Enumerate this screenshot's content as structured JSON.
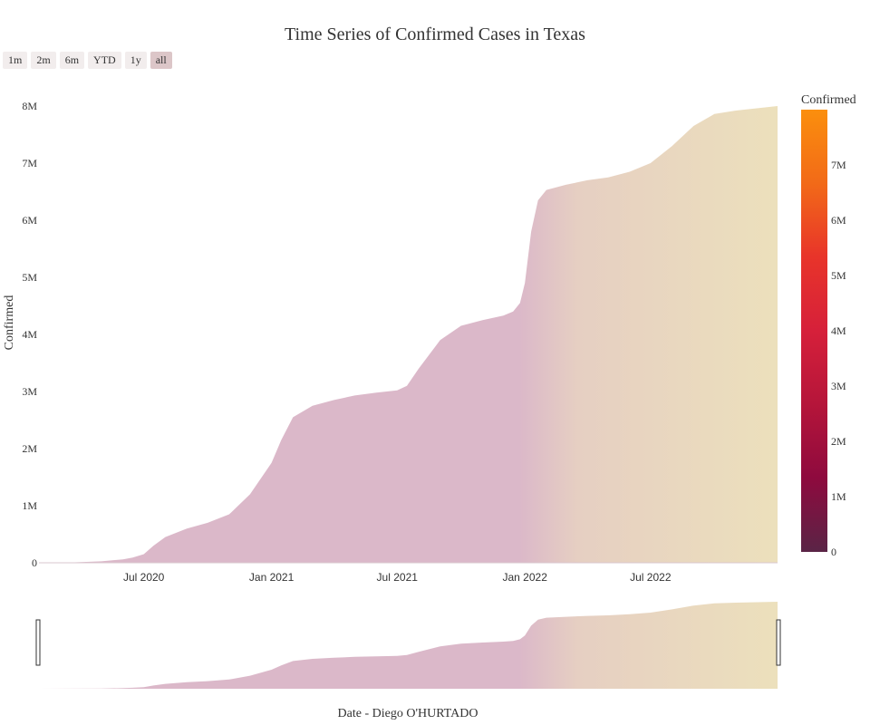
{
  "range_selector": {
    "buttons": [
      "1m",
      "2m",
      "6m",
      "YTD",
      "1y",
      "all"
    ],
    "active": "all"
  },
  "colorbar": {
    "title": "Confirmed",
    "ticks": [
      "0",
      "1M",
      "2M",
      "3M",
      "4M",
      "5M",
      "6M",
      "7M"
    ],
    "colorscale": [
      "#5a2446",
      "#8e0a3e",
      "#b5153a",
      "#d6203a",
      "#e8342a",
      "#f26a18",
      "#fb8f0d"
    ]
  },
  "fill_colors": {
    "start": "#dbb8c9",
    "end": "#ece0bc"
  },
  "chart_data": {
    "type": "area",
    "title": "Time Series of Confirmed Cases in Texas",
    "xlabel": "Date - Diego O'HURTADO",
    "ylabel": "Confirmed",
    "x_range": [
      "2020-02-01",
      "2022-12-31"
    ],
    "ylim": [
      0,
      8000000
    ],
    "y_ticks": [
      "0",
      "1M",
      "2M",
      "3M",
      "4M",
      "5M",
      "6M",
      "7M",
      "8M"
    ],
    "x_ticks": [
      "Jul 2020",
      "Jan 2021",
      "Jul 2021",
      "Jan 2022",
      "Jul 2022"
    ],
    "x_tick_dates": [
      "2020-07-01",
      "2021-01-01",
      "2021-07-01",
      "2022-01-01",
      "2022-07-01"
    ],
    "series": [
      {
        "name": "Confirmed",
        "x": [
          "2020-02-01",
          "2020-03-15",
          "2020-05-01",
          "2020-06-01",
          "2020-06-15",
          "2020-07-01",
          "2020-07-15",
          "2020-08-01",
          "2020-09-01",
          "2020-10-01",
          "2020-11-01",
          "2020-12-01",
          "2021-01-01",
          "2021-01-15",
          "2021-02-01",
          "2021-03-01",
          "2021-04-01",
          "2021-05-01",
          "2021-06-01",
          "2021-07-01",
          "2021-07-15",
          "2021-08-01",
          "2021-09-01",
          "2021-10-01",
          "2021-11-01",
          "2021-12-01",
          "2021-12-15",
          "2021-12-25",
          "2022-01-01",
          "2022-01-10",
          "2022-01-20",
          "2022-02-01",
          "2022-03-01",
          "2022-04-01",
          "2022-05-01",
          "2022-06-01",
          "2022-07-01",
          "2022-08-01",
          "2022-09-01",
          "2022-10-01",
          "2022-11-01",
          "2022-12-01",
          "2022-12-31"
        ],
        "values": [
          0,
          5000,
          25000,
          60000,
          90000,
          150000,
          300000,
          450000,
          600000,
          700000,
          850000,
          1200000,
          1750000,
          2150000,
          2550000,
          2750000,
          2850000,
          2930000,
          2980000,
          3020000,
          3100000,
          3400000,
          3900000,
          4150000,
          4250000,
          4330000,
          4400000,
          4550000,
          4900000,
          5800000,
          6350000,
          6530000,
          6620000,
          6700000,
          6750000,
          6850000,
          7000000,
          7300000,
          7650000,
          7860000,
          7920000,
          7960000,
          8000000
        ]
      }
    ]
  }
}
